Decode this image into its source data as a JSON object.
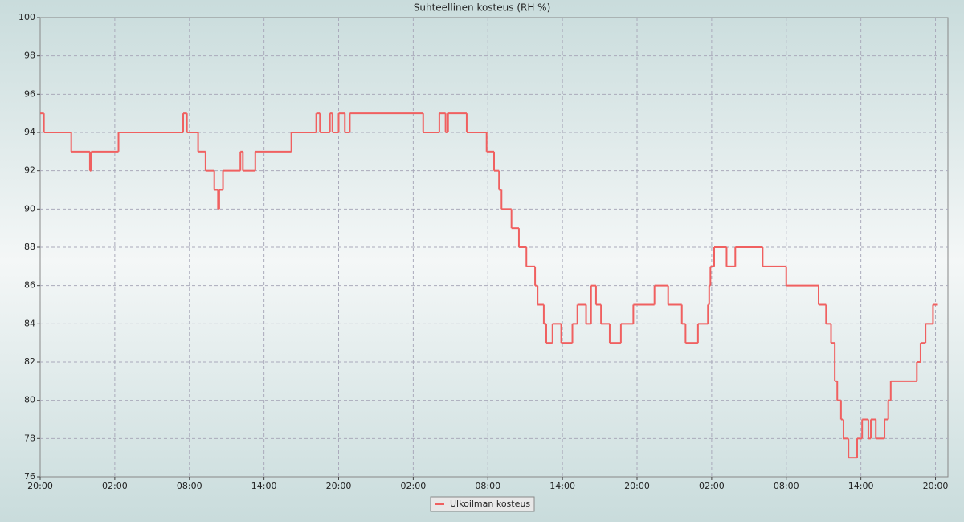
{
  "chart_data": {
    "type": "line",
    "step": "post",
    "title": "Suhteellinen kosteus (RH %)",
    "series": [
      {
        "name": "Ulkoilman kosteus",
        "color": "#f06060",
        "x": [
          0,
          0.3,
          2.5,
          4.0,
          4.1,
          6.3,
          11.5,
          11.8,
          12.7,
          13.3,
          14.0,
          14.3,
          14.4,
          14.7,
          16.1,
          16.3,
          17.3,
          20.2,
          22.2,
          22.5,
          23.3,
          23.5,
          24.0,
          24.5,
          24.9,
          30.8,
          32.1,
          32.6,
          32.8,
          34.3,
          35.9,
          36.5,
          36.9,
          37.1,
          37.9,
          38.5,
          39.1,
          39.8,
          40.0,
          40.5,
          40.7,
          41.2,
          41.9,
          42.8,
          43.2,
          43.9,
          44.3,
          44.7,
          45.1,
          45.8,
          46.7,
          47.7,
          49.4,
          50.5,
          51.6,
          51.9,
          52.9,
          53.7,
          53.8,
          53.9,
          54.2,
          55.2,
          55.9,
          58.1,
          60.0,
          62.6,
          63.2,
          63.6,
          63.9,
          64.1,
          64.4,
          64.6,
          65.0,
          65.7,
          66.1,
          66.6,
          66.8,
          67.2,
          67.9,
          68.2,
          68.4,
          70.5,
          70.8,
          71.2,
          71.8,
          72.0
        ],
        "values": [
          95,
          94,
          93,
          92,
          93,
          94,
          95,
          94,
          93,
          92,
          91,
          90,
          91,
          92,
          93,
          92,
          93,
          94,
          95,
          94,
          95,
          94,
          95,
          94,
          95,
          94,
          95,
          94,
          95,
          94,
          93,
          92,
          91,
          90,
          89,
          88,
          87,
          86,
          85,
          84,
          83,
          84,
          83,
          84,
          85,
          84,
          86,
          85,
          84,
          83,
          84,
          85,
          86,
          85,
          84,
          83,
          84,
          85,
          86,
          87,
          88,
          87,
          88,
          87,
          86,
          85,
          84,
          83,
          81,
          80,
          79,
          78,
          77,
          78,
          79,
          78,
          79,
          78,
          79,
          80,
          81,
          82,
          83,
          84,
          85,
          85
        ]
      }
    ],
    "xlim": [
      0,
      73
    ],
    "ylim": [
      76,
      100
    ],
    "xticks": [
      {
        "value": 0,
        "label": "20:00"
      },
      {
        "value": 6,
        "label": "02:00"
      },
      {
        "value": 12,
        "label": "08:00"
      },
      {
        "value": 18,
        "label": "14:00"
      },
      {
        "value": 24,
        "label": "20:00"
      },
      {
        "value": 30,
        "label": "02:00"
      },
      {
        "value": 36,
        "label": "08:00"
      },
      {
        "value": 42,
        "label": "14:00"
      },
      {
        "value": 48,
        "label": "20:00"
      },
      {
        "value": 54,
        "label": "02:00"
      },
      {
        "value": 60,
        "label": "08:00"
      },
      {
        "value": 66,
        "label": "14:00"
      },
      {
        "value": 72,
        "label": "20:00"
      }
    ],
    "yticks": [
      76,
      78,
      80,
      82,
      84,
      86,
      88,
      90,
      92,
      94,
      96,
      98,
      100
    ],
    "grid": true
  }
}
